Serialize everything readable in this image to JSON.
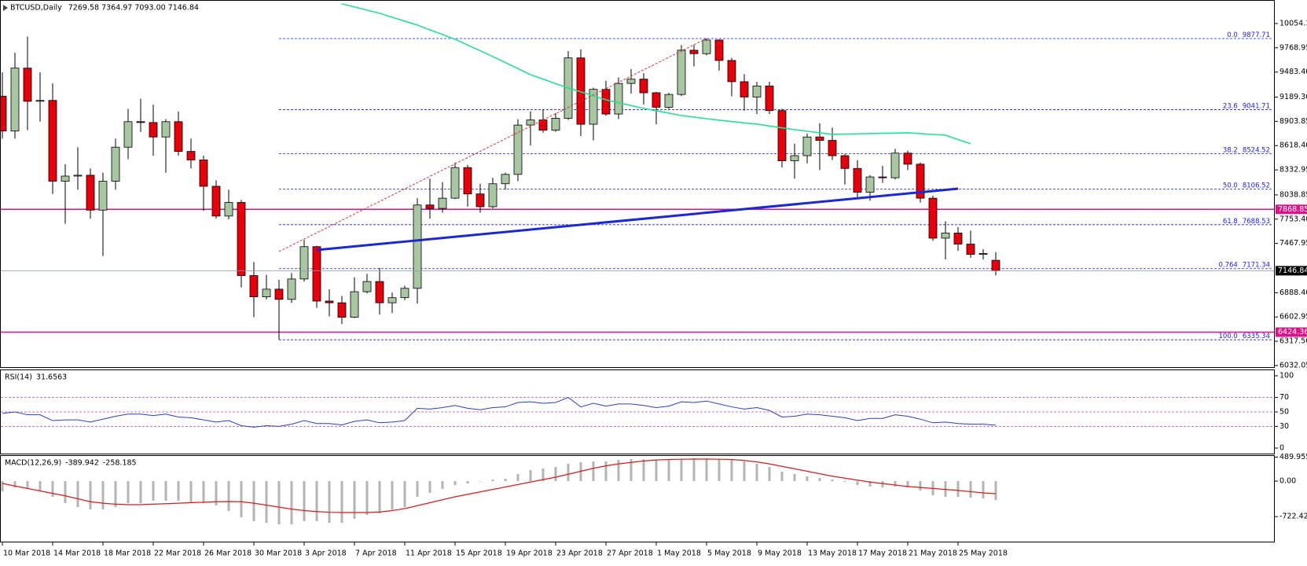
{
  "chart_data": [
    {
      "type": "candlestick",
      "title": "BTCUSD,Daily",
      "header_values": "7269.58 7364.97 7093.00 7146.84",
      "categories": [
        "10 Mar 2018",
        null,
        null,
        null,
        "14 Mar 2018",
        null,
        null,
        null,
        "18 Mar 2018",
        null,
        null,
        null,
        "22 Mar 2018",
        null,
        null,
        null,
        "26 Mar 2018",
        null,
        null,
        null,
        "30 Mar 2018",
        null,
        null,
        null,
        "3 Apr 2018",
        null,
        null,
        null,
        "7 Apr 2018",
        null,
        null,
        null,
        "11 Apr 2018",
        null,
        null,
        null,
        "15 Apr 2018",
        null,
        null,
        null,
        "19 Apr 2018",
        null,
        null,
        null,
        "23 Apr 2018",
        null,
        null,
        null,
        "27 Apr 2018",
        null,
        null,
        null,
        "1 May 2018",
        null,
        null,
        null,
        "5 May 2018",
        null,
        null,
        null,
        "9 May 2018",
        null,
        null,
        null,
        "13 May 2018",
        null,
        null,
        null,
        "17 May 2018",
        null,
        null,
        null,
        "21 May 2018",
        null,
        null,
        null,
        "25 May 2018",
        null,
        null,
        null
      ],
      "candles": [
        [
          9200,
          9480,
          8700,
          8790
        ],
        [
          8790,
          9710,
          8700,
          9530
        ],
        [
          9530,
          9900,
          8800,
          9140
        ],
        [
          9140,
          9480,
          8900,
          9150
        ],
        [
          9150,
          9350,
          8050,
          8200
        ],
        [
          8200,
          8400,
          7700,
          8260
        ],
        [
          8260,
          8600,
          8100,
          8270
        ],
        [
          8270,
          8350,
          7760,
          7860
        ],
        [
          7860,
          8300,
          7320,
          8200
        ],
        [
          8200,
          8700,
          8100,
          8600
        ],
        [
          8600,
          9050,
          8460,
          8900
        ],
        [
          8900,
          9170,
          8780,
          8890
        ],
        [
          8890,
          9100,
          8500,
          8720
        ],
        [
          8720,
          8930,
          8300,
          8900
        ],
        [
          8900,
          9020,
          8500,
          8550
        ],
        [
          8550,
          8700,
          8350,
          8450
        ],
        [
          8450,
          8500,
          7850,
          8140
        ],
        [
          8140,
          8210,
          7760,
          7790
        ],
        [
          7790,
          8100,
          7750,
          7950
        ],
        [
          7950,
          7980,
          6950,
          7090
        ],
        [
          7090,
          7250,
          6600,
          6840
        ],
        [
          6840,
          7100,
          6810,
          6930
        ],
        [
          6930,
          7040,
          6335.34,
          6810
        ],
        [
          6810,
          7120,
          6770,
          7050
        ],
        [
          7050,
          7510,
          7020,
          7430
        ],
        [
          7430,
          7440,
          6710,
          6790
        ],
        [
          6790,
          6930,
          6610,
          6770
        ],
        [
          6770,
          6850,
          6520,
          6600
        ],
        [
          6600,
          7070,
          6590,
          6900
        ],
        [
          6900,
          7110,
          6880,
          7020
        ],
        [
          7020,
          7180,
          6630,
          6770
        ],
        [
          6770,
          6890,
          6650,
          6830
        ],
        [
          6830,
          6970,
          6800,
          6940
        ],
        [
          6940,
          8000,
          6760,
          7920
        ],
        [
          7920,
          8230,
          7760,
          7880
        ],
        [
          7880,
          8190,
          7830,
          8000
        ],
        [
          8000,
          8420,
          7990,
          8360
        ],
        [
          8360,
          8390,
          7900,
          8050
        ],
        [
          8050,
          8170,
          7830,
          7900
        ],
        [
          7900,
          8240,
          7880,
          8170
        ],
        [
          8170,
          8300,
          8100,
          8280
        ],
        [
          8280,
          8930,
          8200,
          8860
        ],
        [
          8860,
          9020,
          8620,
          8920
        ],
        [
          8920,
          9040,
          8770,
          8800
        ],
        [
          8800,
          9000,
          8780,
          8940
        ],
        [
          8940,
          9730,
          8920,
          9650
        ],
        [
          9650,
          9750,
          8730,
          8870
        ],
        [
          8870,
          9300,
          8680,
          9280
        ],
        [
          9280,
          9380,
          8970,
          8990
        ],
        [
          8990,
          9420,
          8930,
          9350
        ],
        [
          9350,
          9520,
          9230,
          9400
        ],
        [
          9400,
          9470,
          9100,
          9240
        ],
        [
          9240,
          9250,
          8870,
          9070
        ],
        [
          9070,
          9240,
          9050,
          9220
        ],
        [
          9220,
          9800,
          9200,
          9740
        ],
        [
          9740,
          9800,
          9550,
          9700
        ],
        [
          9700,
          9877.71,
          9680,
          9860
        ],
        [
          9860,
          9870,
          9500,
          9620
        ],
        [
          9620,
          9650,
          9200,
          9370
        ],
        [
          9370,
          9460,
          9030,
          9190
        ],
        [
          9190,
          9370,
          8990,
          9320
        ],
        [
          9320,
          9370,
          8990,
          9030
        ],
        [
          9030,
          9050,
          8360,
          8440
        ],
        [
          8440,
          8640,
          8230,
          8500
        ],
        [
          8500,
          8760,
          8410,
          8720
        ],
        [
          8720,
          8880,
          8330,
          8680
        ],
        [
          8680,
          8830,
          8450,
          8500
        ],
        [
          8500,
          8520,
          8160,
          8350
        ],
        [
          8350,
          8450,
          8010,
          8070
        ],
        [
          8070,
          8270,
          7970,
          8250
        ],
        [
          8250,
          8380,
          8180,
          8240
        ],
        [
          8240,
          8580,
          8220,
          8530
        ],
        [
          8530,
          8560,
          8330,
          8400
        ],
        [
          8400,
          8420,
          7950,
          8000
        ],
        [
          8000,
          8030,
          7500,
          7530
        ],
        [
          7530,
          7730,
          7280,
          7590
        ],
        [
          7590,
          7660,
          7380,
          7460
        ],
        [
          7460,
          7620,
          7300,
          7340
        ],
        [
          7340,
          7400,
          7280,
          7350
        ],
        [
          7269.58,
          7364.97,
          7093.0,
          7146.84
        ]
      ],
      "up_color": "#a9c6a2",
      "down_color": "#e6000c",
      "moving_average": {
        "color": "#22e392",
        "values": [
          null,
          null,
          null,
          null,
          null,
          null,
          null,
          null,
          null,
          null,
          null,
          null,
          null,
          null,
          null,
          null,
          null,
          null,
          null,
          null,
          null,
          null,
          null,
          null,
          null,
          null,
          null,
          10286,
          10249,
          10212,
          10175,
          10128,
          10082,
          10036,
          9980,
          9925,
          9869,
          9802,
          9734,
          9666,
          9595,
          9524,
          9453,
          9401,
          9348,
          9296,
          9250,
          9204,
          9157,
          9123,
          9089,
          9056,
          9028,
          9000,
          8972,
          8954,
          8935,
          8917,
          8902,
          8886,
          8871,
          8849,
          8828,
          8806,
          8788,
          8769,
          8751,
          8754,
          8757,
          8760,
          8763,
          8766,
          8769,
          8760,
          8750,
          8741,
          8690,
          8640,
          null,
          null
        ]
      },
      "ylim": [
        6004,
        10331
      ],
      "yticks": [
        {
          "value": 10054.3,
          "label": "10054.30"
        },
        {
          "value": 9768.95,
          "label": "9768.95"
        },
        {
          "value": 9483.4,
          "label": "9483.40"
        },
        {
          "value": 9189.3,
          "label": "9189.30"
        },
        {
          "value": 8903.85,
          "label": "8903.85"
        },
        {
          "value": 8618.4,
          "label": "8618.40"
        },
        {
          "value": 8332.95,
          "label": "8332.95"
        },
        {
          "value": 8038.85,
          "label": "8038.85"
        },
        {
          "value": 7753.4,
          "label": "7753.40"
        },
        {
          "value": 7467.95,
          "label": "7467.95"
        },
        {
          "value": 6888.4,
          "label": "6888.40"
        },
        {
          "value": 6602.95,
          "label": "6602.95"
        },
        {
          "value": 6317.5,
          "label": "6317.50"
        },
        {
          "value": 6032.05,
          "label": "6032.05"
        }
      ],
      "fib_levels": [
        {
          "level": "0.0",
          "price": 9877.71
        },
        {
          "level": "23.6",
          "price": 9041.71
        },
        {
          "level": "38.2",
          "price": 8524.52
        },
        {
          "level": "50.0",
          "price": 8106.52
        },
        {
          "level": "61.8",
          "price": 7688.53
        },
        {
          "level": "0.764",
          "price": 7171.34
        },
        {
          "level": "100.0",
          "price": 6335.34
        }
      ],
      "fib_color": "#1a1aff",
      "hlines": [
        7868.85,
        6424.36
      ],
      "hline_color": "#e0108c",
      "last_price_color": "#000000"
    },
    {
      "type": "line",
      "title": "RSI(14)",
      "color": "#2b3ccf",
      "values": [
        48,
        50,
        46,
        46,
        38,
        39,
        39,
        36,
        40,
        44,
        47,
        47,
        45,
        47,
        43,
        42,
        39,
        36,
        38,
        31,
        29,
        31,
        30,
        33,
        38,
        34,
        34,
        32,
        37,
        39,
        35,
        36,
        38,
        55,
        54,
        56,
        59,
        55,
        53,
        56,
        57,
        63,
        64,
        62,
        63,
        70,
        57,
        62,
        58,
        61,
        61,
        59,
        56,
        58,
        64,
        63,
        65,
        61,
        57,
        54,
        56,
        52,
        43,
        44,
        47,
        46,
        44,
        42,
        38,
        41,
        41,
        46,
        44,
        40,
        35,
        36,
        34,
        33,
        33,
        31.6563
      ],
      "ylim": [
        -7.6,
        107.6
      ],
      "yticks": [
        100,
        70,
        50,
        30,
        0
      ],
      "levels": [
        70,
        50,
        30
      ],
      "level_color": "#c040c0"
    },
    {
      "type": "macd",
      "title": "MACD(12,26,9)",
      "values": [
        -208,
        -128,
        -160,
        -208,
        -320,
        -448,
        -528,
        -576,
        -576,
        -528,
        -448,
        -448,
        -400,
        -400,
        -400,
        -448,
        -448,
        -496,
        -608,
        -736,
        -816,
        -848,
        -880,
        -880,
        -816,
        -816,
        -848,
        -848,
        -768,
        -688,
        -656,
        -576,
        -528,
        -320,
        -240,
        -160,
        -80,
        -48,
        0,
        32,
        48,
        144,
        224,
        256,
        288,
        352,
        384,
        400,
        400,
        432,
        448,
        448,
        432,
        432,
        448,
        464,
        464,
        448,
        432,
        400,
        352,
        288,
        192,
        144,
        96,
        64,
        32,
        -16,
        -80,
        -112,
        -128,
        -112,
        -128,
        -192,
        -288,
        -320,
        -320,
        -336,
        -352,
        -389.942
      ],
      "signal": [
        -48,
        -100,
        -150,
        -200,
        -250,
        -300,
        -360,
        -420,
        -450,
        -470,
        -480,
        -480,
        -470,
        -460,
        -450,
        -440,
        -430,
        -420,
        -416,
        -420,
        -450,
        -490,
        -530,
        -570,
        -600,
        -620,
        -635,
        -640,
        -640,
        -640,
        -630,
        -600,
        -560,
        -500,
        -440,
        -380,
        -320,
        -270,
        -220,
        -170,
        -120,
        -70,
        -20,
        30,
        80,
        140,
        200,
        260,
        310,
        350,
        380,
        410,
        430,
        440,
        445,
        448,
        448,
        445,
        440,
        420,
        390,
        350,
        300,
        250,
        200,
        150,
        100,
        60,
        20,
        -20,
        -50,
        -80,
        -110,
        -130,
        -150,
        -170,
        -190,
        -215,
        -240,
        -258.185
      ],
      "bar_color": "#b4b4b4",
      "signal_color": "#e01818",
      "ylim": [
        -1248,
        528
      ],
      "yticks": [
        489.955,
        {
          "value": 0,
          "label": "0.00"
        },
        -722.428
      ]
    }
  ]
}
